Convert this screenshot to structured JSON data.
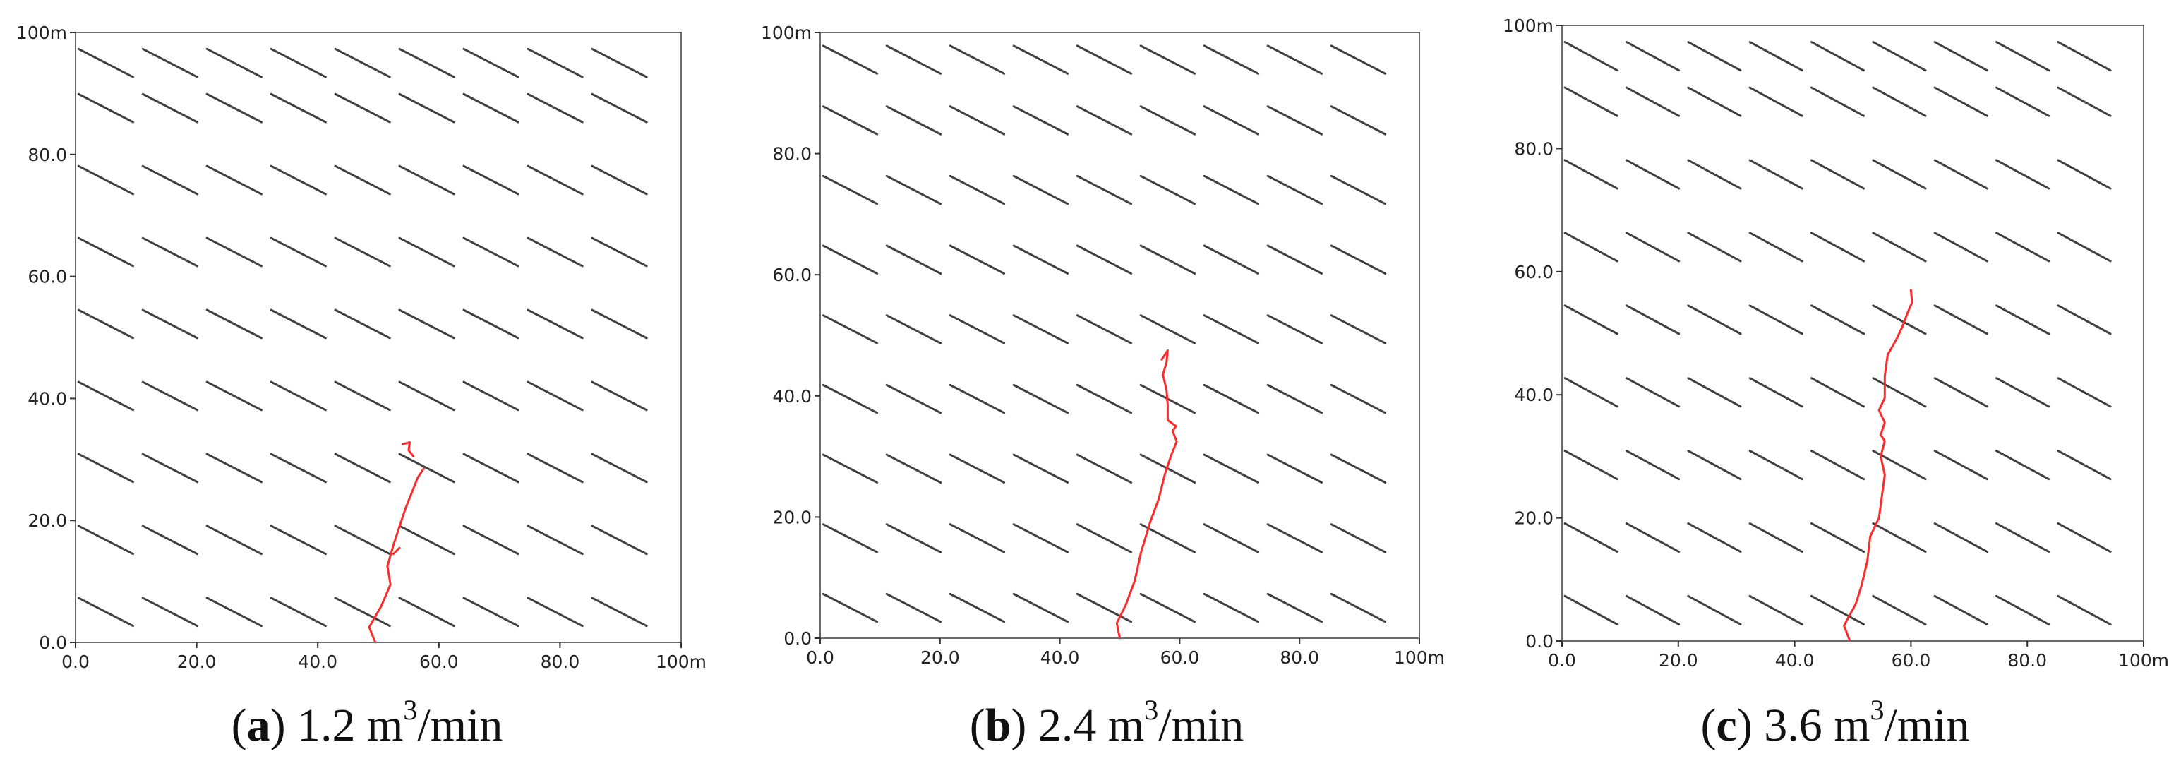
{
  "chart_data": [
    {
      "type": "line",
      "panel": "a",
      "xlim": [
        0,
        100
      ],
      "ylim": [
        0,
        100
      ],
      "xticks": [
        "0.0",
        "20.0",
        "40.0",
        "60.0",
        "80.0",
        "100m"
      ],
      "yticks": [
        "0.0",
        "20.0",
        "40.0",
        "60.0",
        "80.0",
        "100m"
      ],
      "grid": false,
      "colors": {
        "natural_fractures": "#404040",
        "hydraulic_fracture": "#ff2a2a"
      },
      "natural_fractures": {
        "x_centers": [
          5,
          15.6,
          26.2,
          36.8,
          47.4,
          58,
          68.6,
          79.2,
          89.8
        ],
        "y_centers": [
          5,
          16.8,
          28.6,
          40.4,
          52.2,
          64,
          75.8,
          87.6,
          95
        ],
        "dx": 4.5,
        "dy": 2.3
      },
      "series": [
        {
          "segments": [
            [
              [
                49.5,
                0
              ],
              [
                48.5,
                2.5
              ],
              [
                50.5,
                6
              ],
              [
                52,
                9.5
              ],
              [
                51.5,
                12.5
              ],
              [
                52.5,
                16
              ],
              [
                53.5,
                19
              ],
              [
                54.5,
                22
              ],
              [
                55.5,
                24.5
              ],
              [
                56.5,
                27
              ],
              [
                57.5,
                28.5
              ]
            ],
            [
              [
                52.5,
                14.5
              ],
              [
                53.5,
                15.5
              ]
            ],
            [
              [
                54,
                32.5
              ],
              [
                55.2,
                32.8
              ],
              [
                55,
                31.5
              ],
              [
                55.8,
                30.5
              ]
            ]
          ]
        }
      ],
      "caption": {
        "letter": "a",
        "value": "1.2 m",
        "sup": "3",
        "unit": "/min"
      }
    },
    {
      "type": "line",
      "panel": "b",
      "xlim": [
        0,
        100
      ],
      "ylim": [
        0,
        100
      ],
      "xticks": [
        "0.0",
        "20.0",
        "40.0",
        "60.0",
        "80.0",
        "100m"
      ],
      "yticks": [
        "0.0",
        "20.0",
        "40.0",
        "60.0",
        "80.0",
        "100m"
      ],
      "grid": false,
      "colors": {
        "natural_fractures": "#404040",
        "hydraulic_fracture": "#ff2a2a"
      },
      "natural_fractures": {
        "x_centers": [
          5,
          15.6,
          26.2,
          36.8,
          47.4,
          58,
          68.6,
          79.2,
          89.8
        ],
        "y_centers": [
          5,
          16.5,
          28,
          39.5,
          51,
          62.5,
          74,
          85.5,
          95.5
        ],
        "dx": 4.5,
        "dy": 2.3
      },
      "series": [
        {
          "segments": [
            [
              [
                50,
                0
              ],
              [
                49.5,
                2.5
              ],
              [
                51,
                5.5
              ],
              [
                52.5,
                9.5
              ],
              [
                53.5,
                14
              ],
              [
                55,
                19
              ],
              [
                56.5,
                23
              ],
              [
                57.5,
                27
              ],
              [
                58.5,
                30
              ],
              [
                59.5,
                32.5
              ],
              [
                58.8,
                34.2
              ],
              [
                59.4,
                35
              ],
              [
                58,
                36
              ],
              [
                58,
                38.5
              ],
              [
                57.8,
                41
              ],
              [
                57.2,
                43.5
              ],
              [
                57.8,
                45.5
              ],
              [
                58,
                47.5
              ],
              [
                57,
                46
              ]
            ]
          ]
        }
      ],
      "caption": {
        "letter": "b",
        "value": "2.4 m",
        "sup": "3",
        "unit": "/min"
      }
    },
    {
      "type": "line",
      "panel": "c",
      "xlim": [
        0,
        100
      ],
      "ylim": [
        0,
        100
      ],
      "xticks": [
        "0.0",
        "20.0",
        "40.0",
        "60.0",
        "80.0",
        "100m"
      ],
      "yticks": [
        "0.0",
        "20.0",
        "40.0",
        "60.0",
        "80.0",
        "100m"
      ],
      "grid": false,
      "colors": {
        "natural_fractures": "#404040",
        "hydraulic_fracture": "#ff2a2a"
      },
      "natural_fractures": {
        "x_centers": [
          5,
          15.6,
          26.2,
          36.8,
          47.4,
          58,
          68.6,
          79.2,
          89.8
        ],
        "y_centers": [
          5,
          16.8,
          28.6,
          40.4,
          52.2,
          64,
          75.8,
          87.6,
          95
        ],
        "dx": 4.5,
        "dy": 2.3
      },
      "series": [
        {
          "segments": [
            [
              [
                49.5,
                0
              ],
              [
                48.5,
                2.5
              ],
              [
                50.5,
                6
              ],
              [
                51.5,
                9
              ],
              [
                52.5,
                13
              ],
              [
                53,
                17
              ],
              [
                54.5,
                20
              ],
              [
                55,
                23.5
              ],
              [
                55.5,
                27
              ],
              [
                54.8,
                30
              ],
              [
                55.5,
                32.5
              ],
              [
                54.8,
                33.5
              ],
              [
                55.5,
                35.5
              ],
              [
                54.5,
                37.5
              ],
              [
                55.5,
                39.5
              ],
              [
                55.5,
                43
              ],
              [
                56,
                46.5
              ],
              [
                57.5,
                49
              ],
              [
                58.5,
                51
              ],
              [
                59.5,
                53.5
              ],
              [
                60.2,
                55
              ],
              [
                60,
                57
              ]
            ]
          ]
        }
      ],
      "caption": {
        "letter": "c",
        "value": "3.6 m",
        "sup": "3",
        "unit": "/min"
      }
    }
  ]
}
